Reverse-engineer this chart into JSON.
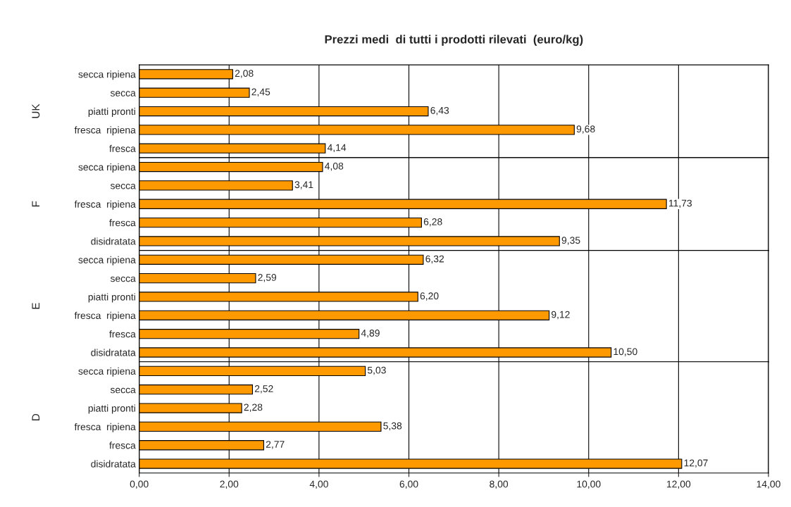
{
  "chart_data": [
    {
      "type": "bar",
      "orientation": "horizontal",
      "title": "Prezzi medi  di tutti i prodotti rilevati  (euro/kg)",
      "ylabel": "UK",
      "categories": [
        "secca ripiena",
        "secca",
        "piatti pronti",
        "fresca  ripiena",
        "fresca"
      ],
      "values": [
        2.08,
        2.45,
        6.43,
        9.68,
        4.14
      ],
      "value_labels": [
        "2,08",
        "2,45",
        "6,43",
        "9,68",
        "4,14"
      ],
      "color": "#ff9900",
      "xlim": [
        0,
        14
      ],
      "xticks": [
        {
          "value": 0,
          "label": null
        },
        {
          "value": 2,
          "label": null
        },
        {
          "value": 4,
          "label": null
        },
        {
          "value": 6,
          "label": null
        },
        {
          "value": 8,
          "label": null
        },
        {
          "value": 10,
          "label": null
        },
        {
          "value": 12,
          "label": null
        },
        {
          "value": 14,
          "label": null
        }
      ],
      "grid": "x",
      "tick_labels": "y"
    },
    {
      "type": "bar",
      "orientation": "horizontal",
      "ylabel": "F",
      "categories": [
        "secca ripiena",
        "secca",
        "fresca  ripiena",
        "fresca",
        "disidratata"
      ],
      "values": [
        4.08,
        3.41,
        11.73,
        6.28,
        9.35
      ],
      "value_labels": [
        "4,08",
        "3,41",
        "11,73",
        "6,28",
        "9,35"
      ],
      "color": "#ff9900",
      "xlim": [
        0,
        14
      ],
      "xticks": [
        {
          "value": 0,
          "label": null
        },
        {
          "value": 2,
          "label": null
        },
        {
          "value": 4,
          "label": null
        },
        {
          "value": 6,
          "label": null
        },
        {
          "value": 8,
          "label": null
        },
        {
          "value": 10,
          "label": null
        },
        {
          "value": 12,
          "label": null
        },
        {
          "value": 14,
          "label": null
        }
      ],
      "grid": "x",
      "tick_labels": "y"
    },
    {
      "type": "bar",
      "orientation": "horizontal",
      "ylabel": "E",
      "categories": [
        "secca ripiena",
        "secca",
        "piatti pronti",
        "fresca  ripiena",
        "fresca",
        "disidratata"
      ],
      "values": [
        6.32,
        2.59,
        6.2,
        9.12,
        4.89,
        10.5
      ],
      "value_labels": [
        "6,32",
        "2,59",
        "6,20",
        "9,12",
        "4,89",
        "10,50"
      ],
      "color": "#ff9900",
      "xlim": [
        0,
        14
      ],
      "xticks": [
        {
          "value": 0,
          "label": null
        },
        {
          "value": 2,
          "label": null
        },
        {
          "value": 4,
          "label": null
        },
        {
          "value": 6,
          "label": null
        },
        {
          "value": 8,
          "label": null
        },
        {
          "value": 10,
          "label": null
        },
        {
          "value": 12,
          "label": null
        },
        {
          "value": 14,
          "label": null
        }
      ],
      "grid": "x",
      "tick_labels": "y"
    },
    {
      "type": "bar",
      "orientation": "horizontal",
      "ylabel": "D",
      "categories": [
        "secca ripiena",
        "secca",
        "piatti pronti",
        "fresca  ripiena",
        "fresca",
        "disidratata"
      ],
      "values": [
        5.03,
        2.52,
        2.28,
        5.38,
        2.77,
        12.07
      ],
      "value_labels": [
        "5,03",
        "2,52",
        "2,28",
        "5,38",
        "2,77",
        "12,07"
      ],
      "color": "#ff9900",
      "xlim": [
        0,
        14
      ],
      "xticks": [
        {
          "value": 0,
          "label": "0,00"
        },
        {
          "value": 2,
          "label": "2,00"
        },
        {
          "value": 4,
          "label": "4,00"
        },
        {
          "value": 6,
          "label": "6,00"
        },
        {
          "value": 8,
          "label": "8,00"
        },
        {
          "value": 10,
          "label": "10,00"
        },
        {
          "value": 12,
          "label": "12,00"
        },
        {
          "value": 14,
          "label": "14,00"
        }
      ],
      "grid": "x"
    }
  ]
}
